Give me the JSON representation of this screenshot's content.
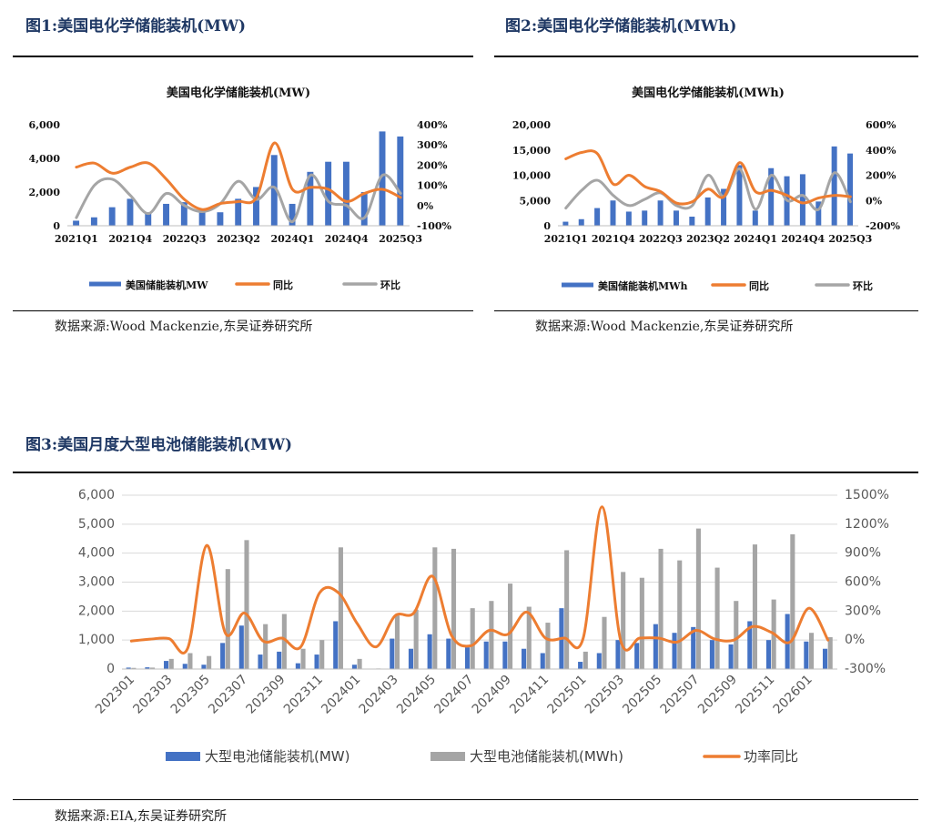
{
  "figures": [
    {
      "label": "图1:美国电化学储能装机(MW)",
      "source": "数据来源:Wood Mackenzie,东吴证券研究所"
    },
    {
      "label": "图2:美国电化学储能装机(MWh)",
      "source": "数据来源:Wood Mackenzie,东吴证券研究所"
    },
    {
      "label": "图3:美国月度大型电池储能装机(MW)",
      "source": "数据来源:EIA,东吴证券研究所"
    }
  ],
  "colors": {
    "blue": "#4472c4",
    "orange": "#ed7d31",
    "gray": "#a5a5a5",
    "title": "#1f3864"
  },
  "chart_data": [
    {
      "type": "bar",
      "title": "美国电化学储能装机(MW)",
      "categories": [
        "2021Q1",
        "2021Q2",
        "2021Q3",
        "2021Q4",
        "2022Q1",
        "2022Q2",
        "2022Q3",
        "2022Q4",
        "2023Q1",
        "2023Q2",
        "2023Q3",
        "2023Q4",
        "2024Q1",
        "2024Q2",
        "2024Q3",
        "2024Q4",
        "2025Q1",
        "2025Q2",
        "2025Q3"
      ],
      "tick_labels": [
        "2021Q1",
        "2021Q4",
        "2022Q3",
        "2023Q2",
        "2024Q1",
        "2024Q4",
        "2025Q3"
      ],
      "y_left": {
        "min": 0,
        "max": 6000,
        "ticks": [
          "0",
          "2,000",
          "4,000",
          "6,000"
        ]
      },
      "y_right": {
        "min": -100,
        "max": 400,
        "ticks": [
          "-100%",
          "0%",
          "100%",
          "200%",
          "300%",
          "400%"
        ]
      },
      "series": [
        {
          "name": "美国储能装机MW",
          "kind": "bar",
          "axis": "left",
          "color": "#4472c4",
          "values": [
            300,
            500,
            1100,
            1600,
            800,
            1300,
            1400,
            1000,
            800,
            1600,
            2300,
            4200,
            1300,
            3200,
            3800,
            3800,
            2000,
            5600,
            5300
          ]
        },
        {
          "name": "同比",
          "kind": "line",
          "axis": "right",
          "color": "#ed7d31",
          "values": [
            190,
            210,
            160,
            190,
            210,
            130,
            30,
            -20,
            10,
            20,
            40,
            310,
            80,
            90,
            80,
            20,
            60,
            80,
            40
          ]
        },
        {
          "name": "环比",
          "kind": "line",
          "axis": "right",
          "color": "#a5a5a5",
          "values": [
            -60,
            100,
            130,
            50,
            -40,
            60,
            0,
            -30,
            10,
            120,
            30,
            90,
            -80,
            150,
            20,
            0,
            -60,
            150,
            60
          ]
        }
      ],
      "legend": "bottom"
    },
    {
      "type": "bar",
      "title": "美国电化学储能装机(MWh)",
      "categories": [
        "2021Q1",
        "2021Q2",
        "2021Q3",
        "2021Q4",
        "2022Q1",
        "2022Q2",
        "2022Q3",
        "2022Q4",
        "2023Q1",
        "2023Q2",
        "2023Q3",
        "2023Q4",
        "2024Q1",
        "2024Q2",
        "2024Q3",
        "2024Q4",
        "2025Q1",
        "2025Q2",
        "2025Q3"
      ],
      "tick_labels": [
        "2021Q1",
        "2021Q4",
        "2022Q3",
        "2023Q2",
        "2024Q1",
        "2024Q4",
        "2025Q3"
      ],
      "y_left": {
        "min": 0,
        "max": 20000,
        "ticks": [
          "0",
          "5,000",
          "10,000",
          "15,000",
          "20,000"
        ]
      },
      "y_right": {
        "min": -200,
        "max": 600,
        "ticks": [
          "-200%",
          "0%",
          "200%",
          "400%",
          "600%"
        ]
      },
      "series": [
        {
          "name": "美国储能装机MWh",
          "kind": "bar",
          "axis": "left",
          "color": "#4472c4",
          "values": [
            800,
            1300,
            3500,
            5000,
            2800,
            3000,
            5000,
            3000,
            1800,
            5600,
            7300,
            12000,
            3000,
            11400,
            9800,
            10200,
            4800,
            15700,
            14300
          ]
        },
        {
          "name": "同比",
          "kind": "line",
          "axis": "right",
          "color": "#ed7d31",
          "values": [
            330,
            380,
            370,
            130,
            200,
            110,
            70,
            -20,
            -10,
            90,
            30,
            300,
            70,
            80,
            40,
            -20,
            20,
            40,
            30
          ]
        },
        {
          "name": "环比",
          "kind": "line",
          "axis": "right",
          "color": "#a5a5a5",
          "values": [
            -60,
            80,
            160,
            40,
            -40,
            10,
            60,
            -40,
            -40,
            200,
            30,
            250,
            -70,
            200,
            0,
            40,
            -70,
            220,
            -10
          ]
        }
      ],
      "legend": "bottom"
    },
    {
      "type": "bar",
      "title": "",
      "categories": [
        "202301",
        "202302",
        "202303",
        "202304",
        "202305",
        "202306",
        "202307",
        "202308",
        "202309",
        "202310",
        "202311",
        "202312",
        "202401",
        "202402",
        "202403",
        "202404",
        "202405",
        "202406",
        "202407",
        "202408",
        "202409",
        "202410",
        "202411",
        "202412",
        "202501",
        "202502",
        "202503",
        "202504",
        "202505",
        "202506",
        "202507",
        "202508",
        "202509",
        "202510",
        "202511",
        "202512",
        "202601",
        "202602"
      ],
      "tick_labels": [
        "202301",
        "202303",
        "202305",
        "202307",
        "202309",
        "202311",
        "202401",
        "202403",
        "202405",
        "202407",
        "202409",
        "202411",
        "202501",
        "202503",
        "202505",
        "202507",
        "202509",
        "202511",
        "202601"
      ],
      "y_left": {
        "min": 0,
        "max": 6000,
        "ticks": [
          "0",
          "1,000",
          "2,000",
          "3,000",
          "4,000",
          "5,000",
          "6,000"
        ]
      },
      "y_right": {
        "min": -300,
        "max": 1500,
        "ticks": [
          "-300%",
          "0%",
          "300%",
          "600%",
          "900%",
          "1200%",
          "1500%"
        ]
      },
      "series": [
        {
          "name": "大型电池储能装机(MW)",
          "kind": "bar",
          "axis": "left",
          "color": "#4472c4",
          "values": [
            50,
            60,
            280,
            180,
            150,
            900,
            1500,
            500,
            600,
            200,
            500,
            1650,
            150,
            10,
            1050,
            700,
            1200,
            1050,
            750,
            950,
            950,
            700,
            550,
            2100,
            250,
            550,
            1000,
            900,
            1550,
            1250,
            1450,
            1000,
            850,
            1650,
            1000,
            1900,
            950,
            700
          ]
        },
        {
          "name": "大型电池储能装机(MWh)",
          "kind": "bar",
          "axis": "left",
          "color": "#a5a5a5",
          "values": [
            40,
            50,
            350,
            550,
            450,
            3450,
            4450,
            1550,
            1900,
            700,
            1000,
            4200,
            350,
            20,
            1850,
            2050,
            4200,
            4150,
            2100,
            2350,
            2950,
            2150,
            1600,
            4100,
            600,
            1800,
            3350,
            3150,
            4150,
            3750,
            4850,
            3500,
            2350,
            4300,
            2400,
            4650,
            1250,
            1100
          ]
        },
        {
          "name": "功率同比",
          "kind": "line",
          "axis": "right",
          "color": "#ed7d31",
          "values": [
            -10,
            10,
            15,
            -80,
            980,
            70,
            280,
            -10,
            20,
            -70,
            490,
            490,
            170,
            -70,
            250,
            280,
            660,
            50,
            -60,
            100,
            60,
            290,
            20,
            20,
            20,
            1380,
            -10,
            20,
            20,
            -20,
            100,
            10,
            0,
            140,
            80,
            -20,
            330,
            0
          ]
        }
      ],
      "legend": "bottom"
    }
  ]
}
